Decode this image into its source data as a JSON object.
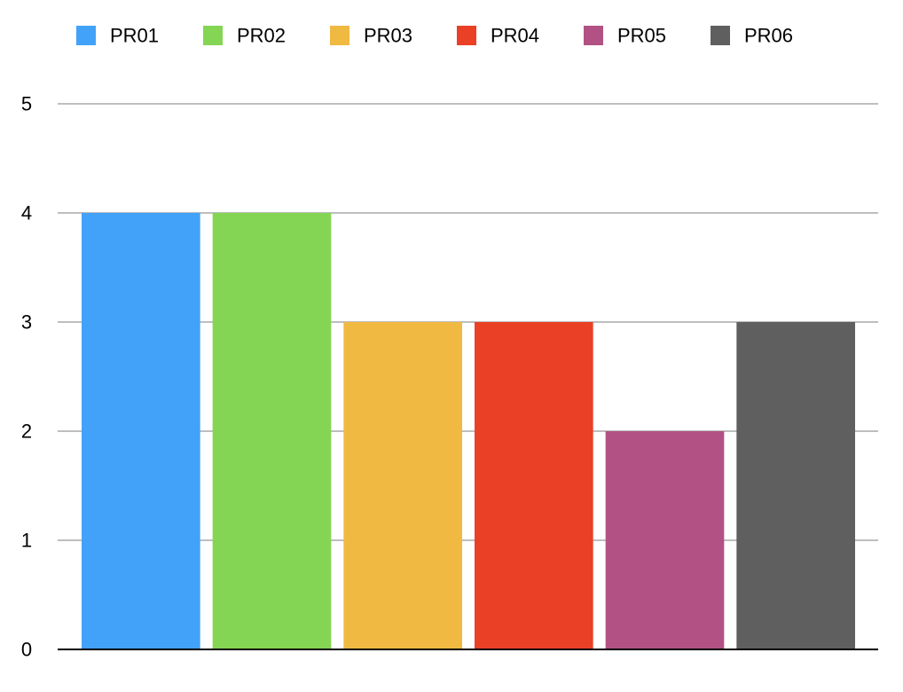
{
  "chart_data": {
    "type": "bar",
    "title": "",
    "xlabel": "",
    "ylabel": "",
    "categories": [
      "PR01",
      "PR02",
      "PR03",
      "PR04",
      "PR05",
      "PR06"
    ],
    "values": [
      4,
      4,
      3,
      3,
      2,
      3
    ],
    "series": [
      {
        "name": "PR01",
        "value": 4,
        "color": "#42A2F9"
      },
      {
        "name": "PR02",
        "value": 4,
        "color": "#85D554"
      },
      {
        "name": "PR03",
        "value": 3,
        "color": "#F0B942"
      },
      {
        "name": "PR04",
        "value": 3,
        "color": "#EA4026"
      },
      {
        "name": "PR05",
        "value": 2,
        "color": "#B25284"
      },
      {
        "name": "PR06",
        "value": 3,
        "color": "#5F5F5F"
      }
    ],
    "ylim": [
      0,
      5
    ],
    "yticks": [
      "0",
      "1",
      "2",
      "3",
      "4",
      "5"
    ],
    "grid": true,
    "legend_position": "top",
    "colors": {
      "gridline": "#BEBEBE",
      "axis": "#000000"
    }
  }
}
